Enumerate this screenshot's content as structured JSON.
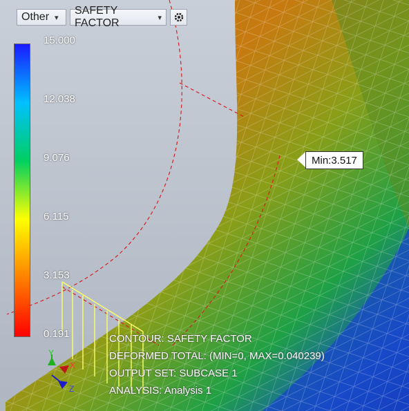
{
  "toolbar": {
    "view_dropdown": "Other",
    "result_dropdown": "SAFETY FACTOR",
    "settings_icon": "gear-icon"
  },
  "legend": {
    "labels": [
      "15.000",
      "12.038",
      "9.076",
      "6.115",
      "3.153",
      "0.191"
    ],
    "colors": [
      "#1a1aff",
      "#00c0ff",
      "#00d060",
      "#ffff00",
      "#ff8000",
      "#ff0000"
    ]
  },
  "callout": {
    "min_label": "Min:3.517"
  },
  "info": {
    "contour": "CONTOUR: SAFETY FACTOR",
    "deformed": "DEFORMED TOTAL: (MIN=0, MAX=0.040239)",
    "output_set": "OUTPUT SET: SUBCASE 1",
    "analysis": "ANALYSIS: Analysis 1"
  },
  "triad": {
    "x": "X",
    "y": "Y",
    "z": "Z"
  }
}
